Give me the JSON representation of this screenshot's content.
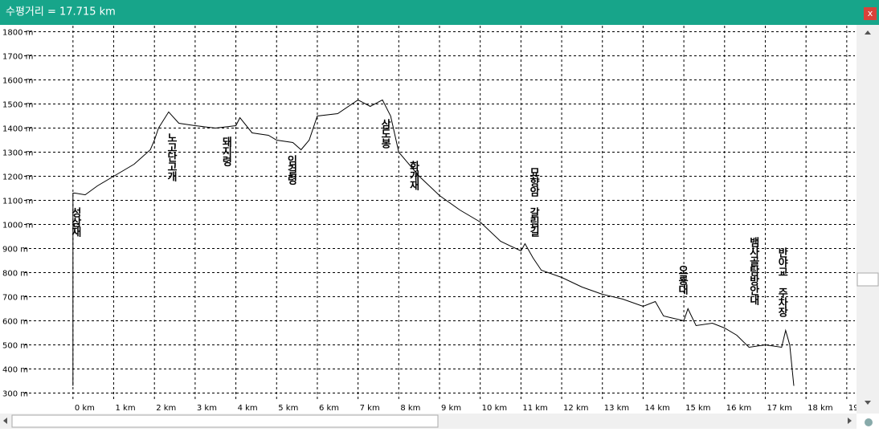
{
  "window_close": "x",
  "chart_data": {
    "type": "line",
    "title": "수평거리 = 17.715 km",
    "color": "#000000",
    "grid": true,
    "x": [
      0,
      0,
      0.05,
      0.3,
      0.6,
      1,
      1.5,
      1.9,
      2.0,
      2.1,
      2.35,
      2.6,
      3,
      3.5,
      4,
      4.1,
      4.4,
      4.8,
      5,
      5.4,
      5.6,
      5.8,
      6.0,
      6.5,
      7,
      7.3,
      7.6,
      7.8,
      8,
      8.5,
      9,
      9.5,
      10,
      10.5,
      11,
      11.1,
      11.3,
      11.5,
      12,
      12.5,
      13,
      13.5,
      14,
      14.3,
      14.5,
      15,
      15.1,
      15.3,
      15.7,
      16,
      16.3,
      16.6,
      17,
      17.4,
      17.5,
      17.6,
      17.7
    ],
    "values": [
      330,
      1130,
      1130,
      1123,
      1160,
      1200,
      1250,
      1310,
      1350,
      1400,
      1467,
      1420,
      1410,
      1400,
      1410,
      1443,
      1380,
      1370,
      1350,
      1340,
      1310,
      1350,
      1450,
      1460,
      1517,
      1490,
      1517,
      1450,
      1300,
      1200,
      1120,
      1060,
      1010,
      930,
      890,
      920,
      860,
      810,
      780,
      740,
      710,
      690,
      660,
      680,
      620,
      600,
      650,
      580,
      590,
      570,
      540,
      490,
      500,
      490,
      560,
      500,
      330
    ],
    "xlim": [
      -1.2,
      19.2
    ],
    "ylim": [
      275,
      1825
    ],
    "xticks": [
      {
        "value": 0,
        "label": "0 km"
      },
      {
        "value": 1,
        "label": "1 km"
      },
      {
        "value": 2,
        "label": "2 km"
      },
      {
        "value": 3,
        "label": "3 km"
      },
      {
        "value": 4,
        "label": "4 km"
      },
      {
        "value": 5,
        "label": "5 km"
      },
      {
        "value": 6,
        "label": "6 km"
      },
      {
        "value": 7,
        "label": "7 km"
      },
      {
        "value": 8,
        "label": "8 km"
      },
      {
        "value": 9,
        "label": "9 km"
      },
      {
        "value": 10,
        "label": "10 km"
      },
      {
        "value": 11,
        "label": "11 km"
      },
      {
        "value": 12,
        "label": "12 km"
      },
      {
        "value": 13,
        "label": "13 km"
      },
      {
        "value": 14,
        "label": "14 km"
      },
      {
        "value": 15,
        "label": "15 km"
      },
      {
        "value": 16,
        "label": "16 km"
      },
      {
        "value": 17,
        "label": "17 km"
      },
      {
        "value": 18,
        "label": "18 km"
      },
      {
        "value": 19,
        "label": "19 km"
      }
    ],
    "yticks": [
      {
        "value": 300,
        "label": "300 m"
      },
      {
        "value": 400,
        "label": "400 m"
      },
      {
        "value": 500,
        "label": "500 m"
      },
      {
        "value": 600,
        "label": "600 m"
      },
      {
        "value": 700,
        "label": "700 m"
      },
      {
        "value": 800,
        "label": "800 m"
      },
      {
        "value": 900,
        "label": "900 m"
      },
      {
        "value": 1000,
        "label": "1000 m"
      },
      {
        "value": 1100,
        "label": "1100 m"
      },
      {
        "value": 1200,
        "label": "1200 m"
      },
      {
        "value": 1300,
        "label": "1300 m"
      },
      {
        "value": 1400,
        "label": "1400 m"
      },
      {
        "value": 1500,
        "label": "1500 m"
      },
      {
        "value": 1600,
        "label": "1600 m"
      },
      {
        "value": 1700,
        "label": "1700 m"
      },
      {
        "value": 1800,
        "label": "1800 m"
      }
    ],
    "annotations": [
      {
        "text": "성삼재",
        "x": 0.05
      },
      {
        "text": "노고단고개",
        "x": 2.4
      },
      {
        "text": "돼지령",
        "x": 3.75
      },
      {
        "text": "임걸령",
        "x": 5.35
      },
      {
        "text": "삼도봉",
        "x": 7.65
      },
      {
        "text": "화개재",
        "x": 8.35
      },
      {
        "text": "묘향암 갈림길",
        "x": 11.3
      },
      {
        "text": "오룡대",
        "x": 14.95
      },
      {
        "text": "뱀사골탐방안내",
        "x": 16.7
      },
      {
        "text": "반야교 주차장",
        "x": 17.4
      }
    ]
  }
}
